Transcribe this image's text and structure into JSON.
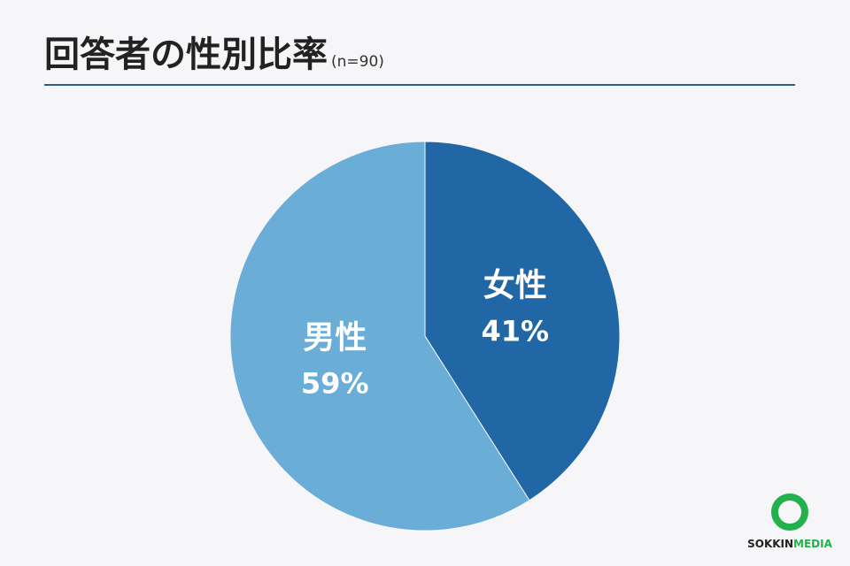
{
  "chart_data": {
    "type": "pie",
    "title": "回答者の性別比率",
    "subtitle": "(n=90)",
    "categories": [
      "女性",
      "男性"
    ],
    "values": [
      41,
      59
    ],
    "value_labels": [
      "41%",
      "59%"
    ],
    "colors": [
      "#2166a5",
      "#6aaed8"
    ]
  },
  "logo": {
    "text_1": "SOKKIN",
    "text_2": "MEDIA"
  }
}
